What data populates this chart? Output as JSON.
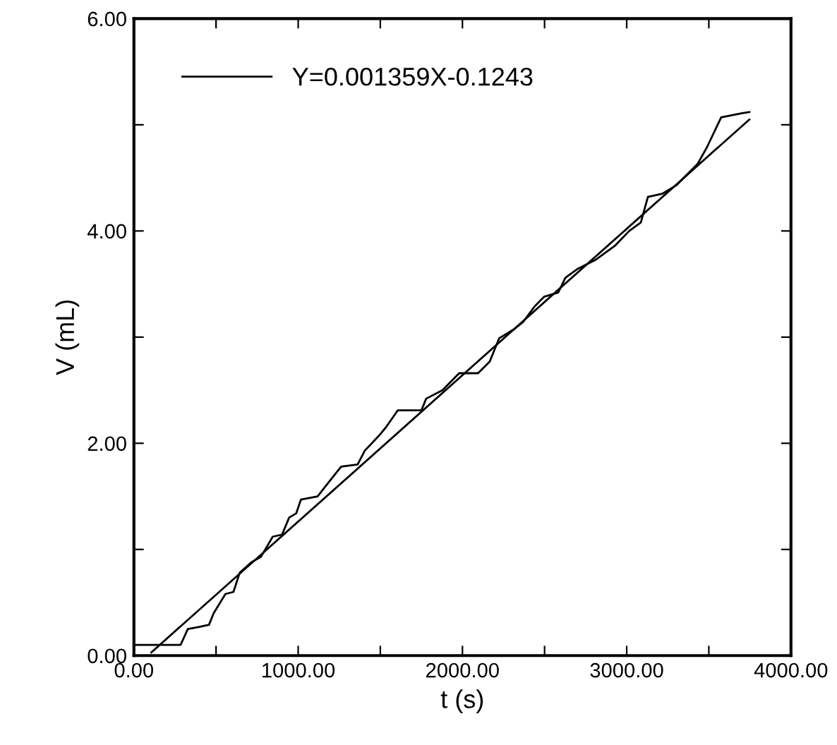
{
  "chart_data": {
    "type": "line",
    "xlabel": "t (s)",
    "ylabel": "V (mL)",
    "xlim": [
      0,
      4000
    ],
    "ylim": [
      0,
      6
    ],
    "xticks": [
      {
        "value": 0,
        "label": "0.00"
      },
      {
        "value": 500,
        "label": null
      },
      {
        "value": 1000,
        "label": "1000.00"
      },
      {
        "value": 1500,
        "label": null
      },
      {
        "value": 2000,
        "label": "2000.00"
      },
      {
        "value": 2500,
        "label": null
      },
      {
        "value": 3000,
        "label": "3000.00"
      },
      {
        "value": 3500,
        "label": null
      },
      {
        "value": 4000,
        "label": "4000.00"
      }
    ],
    "yticks": [
      {
        "value": 0,
        "label": "0.00"
      },
      {
        "value": 1,
        "label": null
      },
      {
        "value": 2,
        "label": "2.00"
      },
      {
        "value": 3,
        "label": null
      },
      {
        "value": 4,
        "label": "4.00"
      },
      {
        "value": 5,
        "label": null
      },
      {
        "value": 6,
        "label": "6.00"
      }
    ],
    "legend": "top left",
    "grid": false,
    "marker": "none",
    "line_style": "solid",
    "series": [
      {
        "color": "#000000",
        "x": [
          0,
          284,
          328,
          397,
          457,
          486,
          557,
          606,
          644,
          716,
          773,
          845,
          902,
          945,
          988,
          1017,
          1118,
          1205,
          1262,
          1362,
          1405,
          1491,
          1534,
          1606,
          1750,
          1779,
          1879,
          1980,
          2095,
          2166,
          2224,
          2310,
          2368,
          2440,
          2497,
          2583,
          2627,
          2698,
          2813,
          2928,
          3015,
          3086,
          3129,
          3216,
          3302,
          3431,
          3489,
          3575,
          3704,
          3747
        ],
        "values": [
          0.1,
          0.1,
          0.25,
          0.27,
          0.29,
          0.4,
          0.58,
          0.6,
          0.78,
          0.88,
          0.93,
          1.12,
          1.14,
          1.3,
          1.34,
          1.47,
          1.5,
          1.67,
          1.78,
          1.8,
          1.93,
          2.07,
          2.15,
          2.31,
          2.31,
          2.42,
          2.5,
          2.66,
          2.66,
          2.77,
          2.99,
          3.07,
          3.14,
          3.29,
          3.38,
          3.42,
          3.56,
          3.64,
          3.73,
          3.86,
          4.0,
          4.08,
          4.32,
          4.35,
          4.43,
          4.63,
          4.79,
          5.07,
          5.11,
          5.12
        ]
      },
      {
        "name": "Y=0.001359X-0.1243",
        "color": "#000000",
        "x": [
          106,
          3747
        ],
        "values": [
          0.03,
          5.05
        ]
      }
    ]
  }
}
